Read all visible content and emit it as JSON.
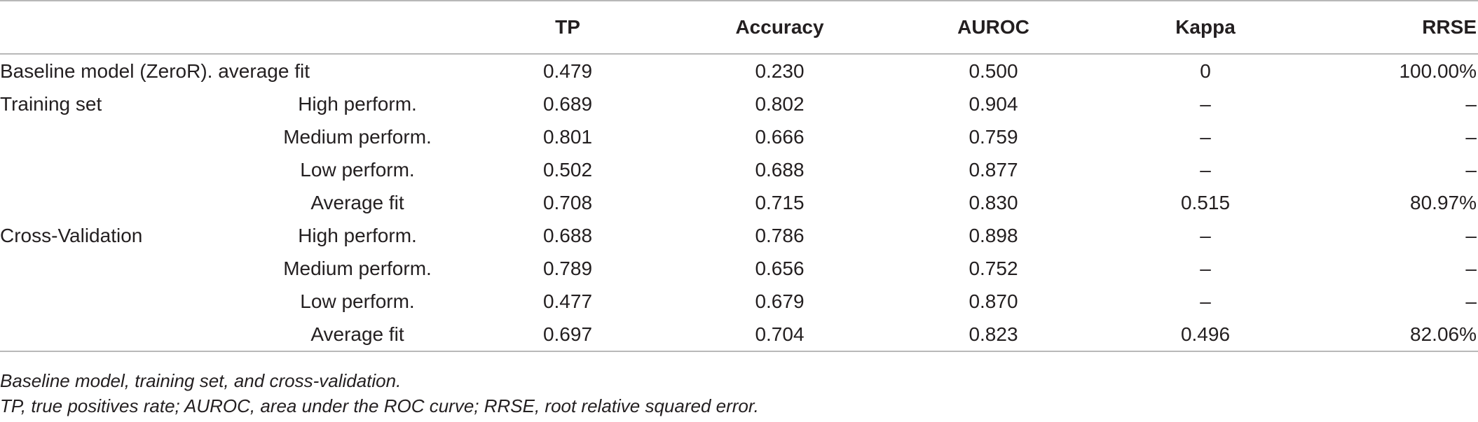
{
  "table": {
    "headers": [
      "",
      "",
      "TP",
      "Accuracy",
      "AUROC",
      "Kappa",
      "RRSE"
    ],
    "rows": [
      {
        "group": "Baseline model (ZeroR). average fit",
        "sub": "",
        "tp": "0.479",
        "accuracy": "0.230",
        "auroc": "0.500",
        "kappa": "0",
        "rrse": "100.00%"
      },
      {
        "group": "Training set",
        "sub": "High perform.",
        "tp": "0.689",
        "accuracy": "0.802",
        "auroc": "0.904",
        "kappa": "–",
        "rrse": "–"
      },
      {
        "group": "",
        "sub": "Medium perform.",
        "tp": "0.801",
        "accuracy": "0.666",
        "auroc": "0.759",
        "kappa": "–",
        "rrse": "–"
      },
      {
        "group": "",
        "sub": "Low perform.",
        "tp": "0.502",
        "accuracy": "0.688",
        "auroc": "0.877",
        "kappa": "–",
        "rrse": "–"
      },
      {
        "group": "",
        "sub": "Average fit",
        "tp": "0.708",
        "accuracy": "0.715",
        "auroc": "0.830",
        "kappa": "0.515",
        "rrse": "80.97%"
      },
      {
        "group": "Cross-Validation",
        "sub": "High perform.",
        "tp": "0.688",
        "accuracy": "0.786",
        "auroc": "0.898",
        "kappa": "–",
        "rrse": "–"
      },
      {
        "group": "",
        "sub": "Medium perform.",
        "tp": "0.789",
        "accuracy": "0.656",
        "auroc": "0.752",
        "kappa": "–",
        "rrse": "–"
      },
      {
        "group": "",
        "sub": "Low perform.",
        "tp": "0.477",
        "accuracy": "0.679",
        "auroc": "0.870",
        "kappa": "–",
        "rrse": "–"
      },
      {
        "group": "",
        "sub": "Average fit",
        "tp": "0.697",
        "accuracy": "0.704",
        "auroc": "0.823",
        "kappa": "0.496",
        "rrse": "82.06%"
      }
    ]
  },
  "notes": {
    "caption": "Baseline model, training set, and cross-validation.",
    "abbreviations": "TP, true positives rate; AUROC, area under the ROC curve; RRSE, root relative squared error."
  }
}
